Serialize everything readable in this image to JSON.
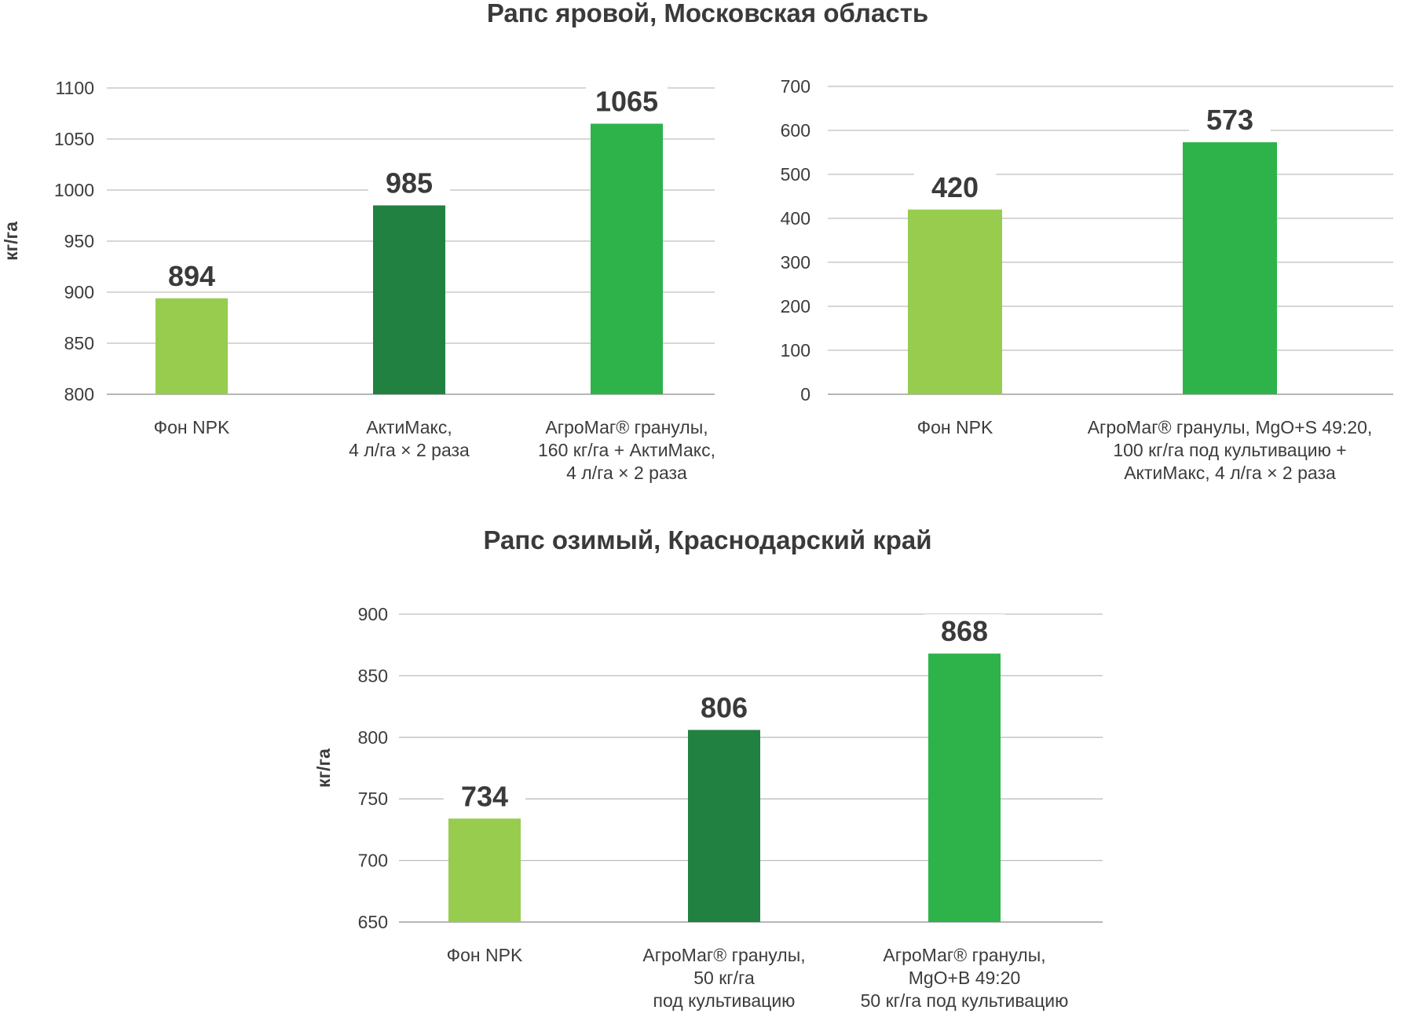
{
  "sections": [
    {
      "title": "Рапс яровой, Московская область"
    },
    {
      "title": "Рапс озимый, Краснодарский край"
    }
  ],
  "colors": {
    "light_green": "#97cc4f",
    "dark_green": "#218140",
    "green": "#2db34a",
    "grid": "#bdbdbd",
    "text": "#3c3c3c"
  },
  "chart_data": [
    {
      "type": "bar",
      "section": 0,
      "ylabel": "кг/га",
      "ylim": [
        800,
        1100
      ],
      "yticks": [
        800,
        850,
        900,
        950,
        1000,
        1050,
        1100
      ],
      "grid": true,
      "categories": [
        [
          "Фон NPK"
        ],
        [
          "АктиМакс,",
          "4 л/га × 2 раза"
        ],
        [
          "АгроМаг® гранулы,",
          "160 кг/га + АктиМакс,",
          "4 л/га × 2 раза"
        ]
      ],
      "values": [
        894,
        985,
        1065
      ],
      "bar_colors": [
        "#97cc4f",
        "#218140",
        "#2db34a"
      ]
    },
    {
      "type": "bar",
      "section": 0,
      "ylabel": "",
      "ylim": [
        0,
        700
      ],
      "yticks": [
        0,
        100,
        200,
        300,
        400,
        500,
        600,
        700
      ],
      "grid": true,
      "categories": [
        [
          "Фон NPK"
        ],
        [
          "АгроМаг® гранулы, MgO+S 49:20,",
          "100 кг/га под культивацию +",
          "АктиМакс, 4 л/га × 2 раза"
        ]
      ],
      "values": [
        420,
        573
      ],
      "bar_colors": [
        "#97cc4f",
        "#2db34a"
      ]
    },
    {
      "type": "bar",
      "section": 1,
      "ylabel": "кг/га",
      "ylim": [
        650,
        900
      ],
      "yticks": [
        650,
        700,
        750,
        800,
        850,
        900
      ],
      "grid": true,
      "categories": [
        [
          "Фон NPK"
        ],
        [
          "АгроМаг® гранулы,",
          "50 кг/га",
          "под культивацию"
        ],
        [
          "АгроМаг® гранулы,",
          "MgO+B 49:20",
          "50 кг/га под культивацию"
        ]
      ],
      "values": [
        734,
        806,
        868
      ],
      "bar_colors": [
        "#97cc4f",
        "#218140",
        "#2db34a"
      ]
    }
  ]
}
